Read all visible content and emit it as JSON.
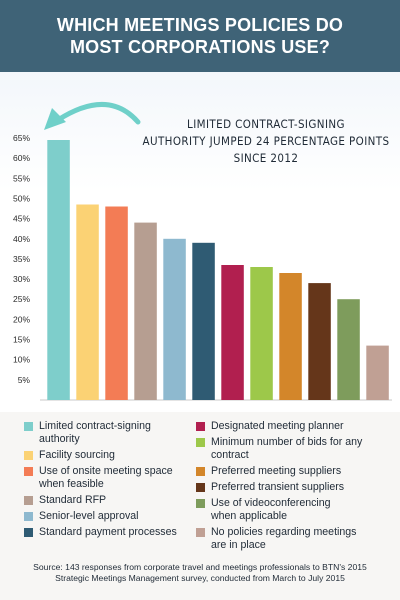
{
  "header": {
    "title": "WHICH MEETINGS POLICIES DO MOST CORPORATIONS USE?"
  },
  "annotation": {
    "text": "LIMITED CONTRACT-SIGNING\nAUTHORITY JUMPED 24 PERCENTAGE POINTS\nSINCE 2012"
  },
  "colors": {
    "header_bg": "#3f6377",
    "arrow": "#6fd0c9"
  },
  "chart_data": {
    "type": "bar",
    "title": "WHICH MEETINGS POLICIES DO MOST CORPORATIONS USE?",
    "xlabel": "",
    "ylabel": "",
    "ylim": [
      0,
      65
    ],
    "yticks": [
      "5%",
      "10%",
      "15%",
      "20%",
      "25%",
      "30%",
      "35%",
      "40%",
      "45%",
      "50%",
      "55%",
      "60%",
      "65%"
    ],
    "categories": [
      "Limited contract-signing authority",
      "Facility sourcing",
      "Use of onsite meeting space when feasible",
      "Standard RFP",
      "Senior-level approval",
      "Standard payment processes",
      "Designated meeting planner",
      "Minimum number of bids for any contract",
      "Preferred meeting suppliers",
      "Preferred transient suppliers",
      "Use of videoconferencing when applicable",
      "No policies regarding meetings are in place"
    ],
    "values": [
      64.5,
      48.5,
      48,
      44,
      40,
      39,
      33.5,
      33,
      31.5,
      29,
      25,
      13.5
    ],
    "colors": [
      "#7ececb",
      "#fbd274",
      "#f37c55",
      "#b69e91",
      "#8eb9cf",
      "#2f5b73",
      "#b11f4f",
      "#9dc84a",
      "#d3862a",
      "#65361a",
      "#7e9c5c",
      "#c0a094"
    ],
    "grid": false,
    "legend": "below"
  },
  "legend": {
    "left": [
      {
        "label": "Limited contract-signing authority",
        "color": "#7ececb"
      },
      {
        "label": "Facility sourcing",
        "color": "#fbd274"
      },
      {
        "label": "Use of onsite meeting space\nwhen feasible",
        "color": "#f37c55"
      },
      {
        "label": "Standard RFP",
        "color": "#b69e91"
      },
      {
        "label": "Senior-level approval",
        "color": "#8eb9cf"
      },
      {
        "label": "Standard payment processes",
        "color": "#2f5b73"
      }
    ],
    "right": [
      {
        "label": "Designated meeting planner",
        "color": "#b11f4f"
      },
      {
        "label": "Minimum number of bids for any contract",
        "color": "#9dc84a"
      },
      {
        "label": "Preferred meeting suppliers",
        "color": "#d3862a"
      },
      {
        "label": "Preferred transient suppliers",
        "color": "#65361a"
      },
      {
        "label": "Use of videoconferencing\nwhen applicable",
        "color": "#7e9c5c"
      },
      {
        "label": "No policies regarding meetings\nare in place",
        "color": "#c0a094"
      }
    ]
  },
  "source": {
    "line1": "Source: 143 responses from corporate travel and meetings professionals to BTN's 2015",
    "line2": "Strategic Meetings Management survey, conducted from March to July 2015"
  }
}
